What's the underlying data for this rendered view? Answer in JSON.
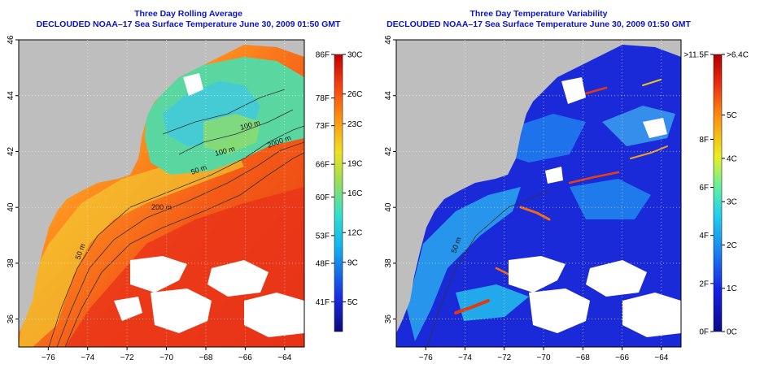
{
  "left_panel": {
    "title": "Three Day Rolling Average",
    "subtitle": "DECLOUDED NOAA–17 Sea Surface Temperature June 30, 2009 01:50 GMT"
  },
  "right_panel": {
    "title": "Three Day Temperature Variability",
    "subtitle": "DECLOUDED NOAA–17 Sea Surface Temperature June 30, 2009 01:50 GMT"
  },
  "chart_data": [
    {
      "type": "heatmap",
      "title": "Three Day Rolling Average",
      "subtitle": "DECLOUDED NOAA–17 Sea Surface Temperature June 30, 2009 01:50 GMT",
      "x_ticks": [
        "−76",
        "−74",
        "−72",
        "−70",
        "−68",
        "−66",
        "−64"
      ],
      "x_tick_values": [
        -76,
        -74,
        -72,
        -70,
        -68,
        -66,
        -64
      ],
      "y_ticks": [
        "36",
        "38",
        "40",
        "42",
        "44",
        "46"
      ],
      "y_tick_values": [
        36,
        38,
        40,
        42,
        44,
        46
      ],
      "xlim": [
        -77.5,
        -63
      ],
      "ylim": [
        35,
        46
      ],
      "contour_labels": [
        "100 m",
        "100 m",
        "2000 m",
        "50 m",
        "200 m",
        "50 m"
      ],
      "colorbar": {
        "min_c": 2,
        "max_c": 30,
        "celsius_ticks": [
          {
            "label": "30C",
            "value": 30
          },
          {
            "label": "26C",
            "value": 26
          },
          {
            "label": "23C",
            "value": 23
          },
          {
            "label": "19C",
            "value": 19
          },
          {
            "label": "16C",
            "value": 16
          },
          {
            "label": "12C",
            "value": 12
          },
          {
            "label": "9C",
            "value": 9
          },
          {
            "label": "5C",
            "value": 5
          }
        ],
        "fahrenheit_ticks": [
          {
            "label": "86F",
            "value": 30
          },
          {
            "label": "78F",
            "value": 25.6
          },
          {
            "label": "73F",
            "value": 22.8
          },
          {
            "label": "66F",
            "value": 18.9
          },
          {
            "label": "60F",
            "value": 15.6
          },
          {
            "label": "53F",
            "value": 11.7
          },
          {
            "label": "48F",
            "value": 8.9
          },
          {
            "label": "41F",
            "value": 5
          }
        ]
      }
    },
    {
      "type": "heatmap",
      "title": "Three Day Temperature Variability",
      "subtitle": "DECLOUDED NOAA–17 Sea Surface Temperature June 30, 2009 01:50 GMT",
      "x_ticks": [
        "−76",
        "−74",
        "−72",
        "−70",
        "−68",
        "−66",
        "−64"
      ],
      "x_tick_values": [
        -76,
        -74,
        -72,
        -70,
        -68,
        -66,
        -64
      ],
      "y_ticks": [
        "36",
        "38",
        "40",
        "42",
        "44",
        "46"
      ],
      "y_tick_values": [
        36,
        38,
        40,
        42,
        44,
        46
      ],
      "xlim": [
        -77.5,
        -63
      ],
      "ylim": [
        35,
        46
      ],
      "contour_labels": [
        "50 m"
      ],
      "colorbar": {
        "min_c": 0,
        "max_c": 6.4,
        "celsius_ticks": [
          {
            "label": ">6.4C",
            "value": 6.4
          },
          {
            "label": "5C",
            "value": 5
          },
          {
            "label": "4C",
            "value": 4
          },
          {
            "label": "3C",
            "value": 3
          },
          {
            "label": "2C",
            "value": 2
          },
          {
            "label": "1C",
            "value": 1
          },
          {
            "label": "0C",
            "value": 0
          }
        ],
        "fahrenheit_ticks": [
          {
            "label": ">11.5F",
            "value": 6.4
          },
          {
            "label": "8F",
            "value": 4.44
          },
          {
            "label": "6F",
            "value": 3.33
          },
          {
            "label": "4F",
            "value": 2.22
          },
          {
            "label": "2F",
            "value": 1.11
          },
          {
            "label": "0F",
            "value": 0
          }
        ]
      }
    }
  ],
  "colors": {
    "title": "#0a14c8",
    "land": "#bebebe",
    "cloud": "#ffffff"
  }
}
